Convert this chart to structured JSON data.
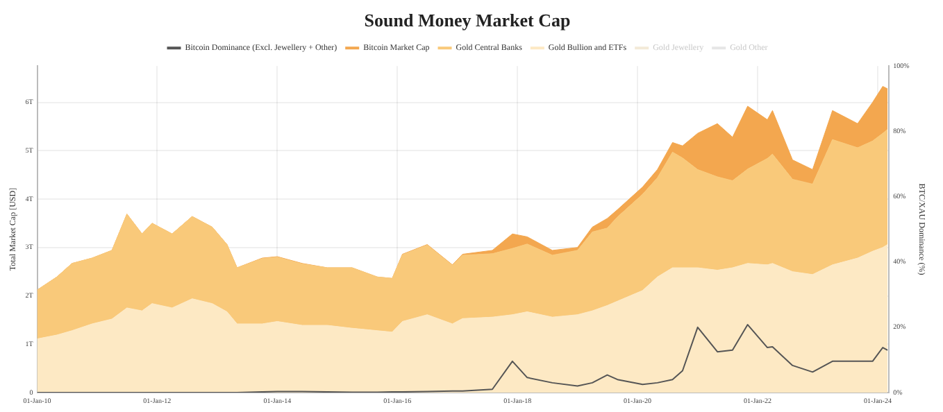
{
  "chart_data": {
    "type": "area",
    "title": "Sound Money Market Cap",
    "xlabel": null,
    "ylabel": "Total Market Cap [USD]",
    "y2label": "BTC/XAU Dominance (%)",
    "stacked": true,
    "legend": "top",
    "grid": true,
    "marker": "none",
    "x": [
      "2010-01",
      "2010-05",
      "2010-08",
      "2010-12",
      "2011-04",
      "2011-07",
      "2011-10",
      "2011-12",
      "2012-04",
      "2012-08",
      "2012-12",
      "2013-03",
      "2013-05",
      "2013-10",
      "2014-01",
      "2014-06",
      "2014-11",
      "2015-04",
      "2015-09",
      "2015-12",
      "2016-02",
      "2016-07",
      "2016-12",
      "2017-02",
      "2017-08",
      "2017-12",
      "2018-03",
      "2018-08",
      "2019-01",
      "2019-04",
      "2019-07",
      "2019-09",
      "2020-02",
      "2020-05",
      "2020-08",
      "2020-10",
      "2021-01",
      "2021-05",
      "2021-08",
      "2021-11",
      "2022-03",
      "2022-04",
      "2022-08",
      "2022-12",
      "2023-04",
      "2023-09",
      "2023-12",
      "2024-02",
      "2024-03"
    ],
    "xlim": [
      "2010-01-01",
      "2024-03-10"
    ],
    "xticks": [
      {
        "value": "2010-01-01",
        "label": "01-Jan-10"
      },
      {
        "value": "2012-01-01",
        "label": "01-Jan-12"
      },
      {
        "value": "2014-01-01",
        "label": "01-Jan-14"
      },
      {
        "value": "2016-01-01",
        "label": "01-Jan-16"
      },
      {
        "value": "2018-01-01",
        "label": "01-Jan-18"
      },
      {
        "value": "2020-01-01",
        "label": "01-Jan-20"
      },
      {
        "value": "2022-01-01",
        "label": "01-Jan-22"
      },
      {
        "value": "2024-01-01",
        "label": "01-Jan-24"
      }
    ],
    "ylim": [
      0,
      6.75
    ],
    "yticks": [
      {
        "value": 0,
        "label": "0"
      },
      {
        "value": 1,
        "label": "1T"
      },
      {
        "value": 2,
        "label": "2T"
      },
      {
        "value": 3,
        "label": "3T"
      },
      {
        "value": 4,
        "label": "4T"
      },
      {
        "value": 5,
        "label": "5T"
      },
      {
        "value": 6,
        "label": "6T"
      }
    ],
    "y2lim": [
      0,
      100
    ],
    "y2ticks": [
      {
        "value": 0,
        "label": "0%"
      },
      {
        "value": 20,
        "label": "20%"
      },
      {
        "value": 40,
        "label": "40%"
      },
      {
        "value": 60,
        "label": "60%"
      },
      {
        "value": 80,
        "label": "80%"
      },
      {
        "value": 100,
        "label": "100%"
      }
    ],
    "series": [
      {
        "name": "Gold Other",
        "color": "#e6e6e6",
        "values": [
          null,
          null,
          null,
          null,
          null,
          null,
          null,
          null,
          null,
          null,
          null,
          null,
          null,
          null,
          null,
          null,
          null,
          null,
          null,
          null,
          null,
          null,
          null,
          null,
          null,
          null,
          null,
          null,
          null,
          null,
          null,
          null,
          null,
          null,
          null,
          null,
          null,
          null,
          null,
          null,
          null,
          null,
          null,
          null,
          null,
          null,
          null,
          null,
          null
        ]
      },
      {
        "name": "Gold Jewellery",
        "color": "#f3ead8",
        "values": [
          null,
          null,
          null,
          null,
          null,
          null,
          null,
          null,
          null,
          null,
          null,
          null,
          null,
          null,
          null,
          null,
          null,
          null,
          null,
          null,
          null,
          null,
          null,
          null,
          null,
          null,
          null,
          null,
          null,
          null,
          null,
          null,
          null,
          null,
          null,
          null,
          null,
          null,
          null,
          null,
          null,
          null,
          null,
          null,
          null,
          null,
          null,
          null,
          null
        ]
      },
      {
        "name": "Gold Bullion and ETFs",
        "color": "#fde9c4",
        "values": [
          1.11,
          1.19,
          1.28,
          1.42,
          1.52,
          1.75,
          1.69,
          1.84,
          1.75,
          1.94,
          1.84,
          1.67,
          1.42,
          1.42,
          1.47,
          1.39,
          1.39,
          1.33,
          1.28,
          1.25,
          1.47,
          1.61,
          1.42,
          1.53,
          1.56,
          1.61,
          1.67,
          1.56,
          1.61,
          1.69,
          1.8,
          1.89,
          2.11,
          2.39,
          2.58,
          2.58,
          2.58,
          2.53,
          2.58,
          2.67,
          2.64,
          2.67,
          2.5,
          2.44,
          2.64,
          2.78,
          2.92,
          3.0,
          3.06
        ]
      },
      {
        "name": "Gold Central Banks",
        "color": "#f9c97a",
        "values": [
          1.01,
          1.2,
          1.39,
          1.36,
          1.42,
          1.94,
          1.59,
          1.66,
          1.53,
          1.7,
          1.58,
          1.39,
          1.16,
          1.35,
          1.33,
          1.27,
          1.19,
          1.25,
          1.11,
          1.11,
          1.38,
          1.44,
          1.21,
          1.31,
          1.31,
          1.37,
          1.4,
          1.28,
          1.33,
          1.63,
          1.6,
          1.74,
          1.99,
          2.05,
          2.39,
          2.27,
          2.03,
          1.93,
          1.8,
          1.95,
          2.2,
          2.26,
          1.91,
          1.87,
          2.59,
          2.28,
          2.28,
          2.36,
          2.38
        ]
      },
      {
        "name": "Bitcoin Market Cap",
        "color": "#f3a74f",
        "values": [
          0,
          0,
          0,
          0,
          0,
          0,
          0,
          0,
          0,
          0,
          0,
          0,
          0,
          0.01,
          0.01,
          0.01,
          0,
          0,
          0,
          0,
          0.01,
          0.01,
          0.01,
          0.02,
          0.07,
          0.3,
          0.15,
          0.1,
          0.06,
          0.1,
          0.2,
          0.15,
          0.15,
          0.17,
          0.2,
          0.25,
          0.75,
          1.1,
          0.9,
          1.3,
          0.8,
          0.9,
          0.4,
          0.3,
          0.6,
          0.5,
          0.8,
          0.97,
          0.84
        ]
      },
      {
        "name": "Bitcoin Dominance (Excl. Jewellery + Other)",
        "type": "line",
        "axis": "y2",
        "color": "#555555",
        "values": [
          0,
          0,
          0,
          0,
          0,
          0,
          0,
          0,
          0,
          0,
          0,
          0,
          0,
          0.2,
          0.3,
          0.3,
          0.2,
          0.1,
          0.1,
          0.2,
          0.2,
          0.3,
          0.5,
          0.5,
          1,
          9.6,
          4.6,
          3,
          2,
          3,
          5.4,
          4,
          2.5,
          3,
          4,
          6.7,
          20,
          12.5,
          13,
          20.8,
          13.8,
          14,
          8.3,
          6.3,
          9.6,
          9.6,
          9.6,
          13.8,
          13
        ]
      }
    ]
  }
}
